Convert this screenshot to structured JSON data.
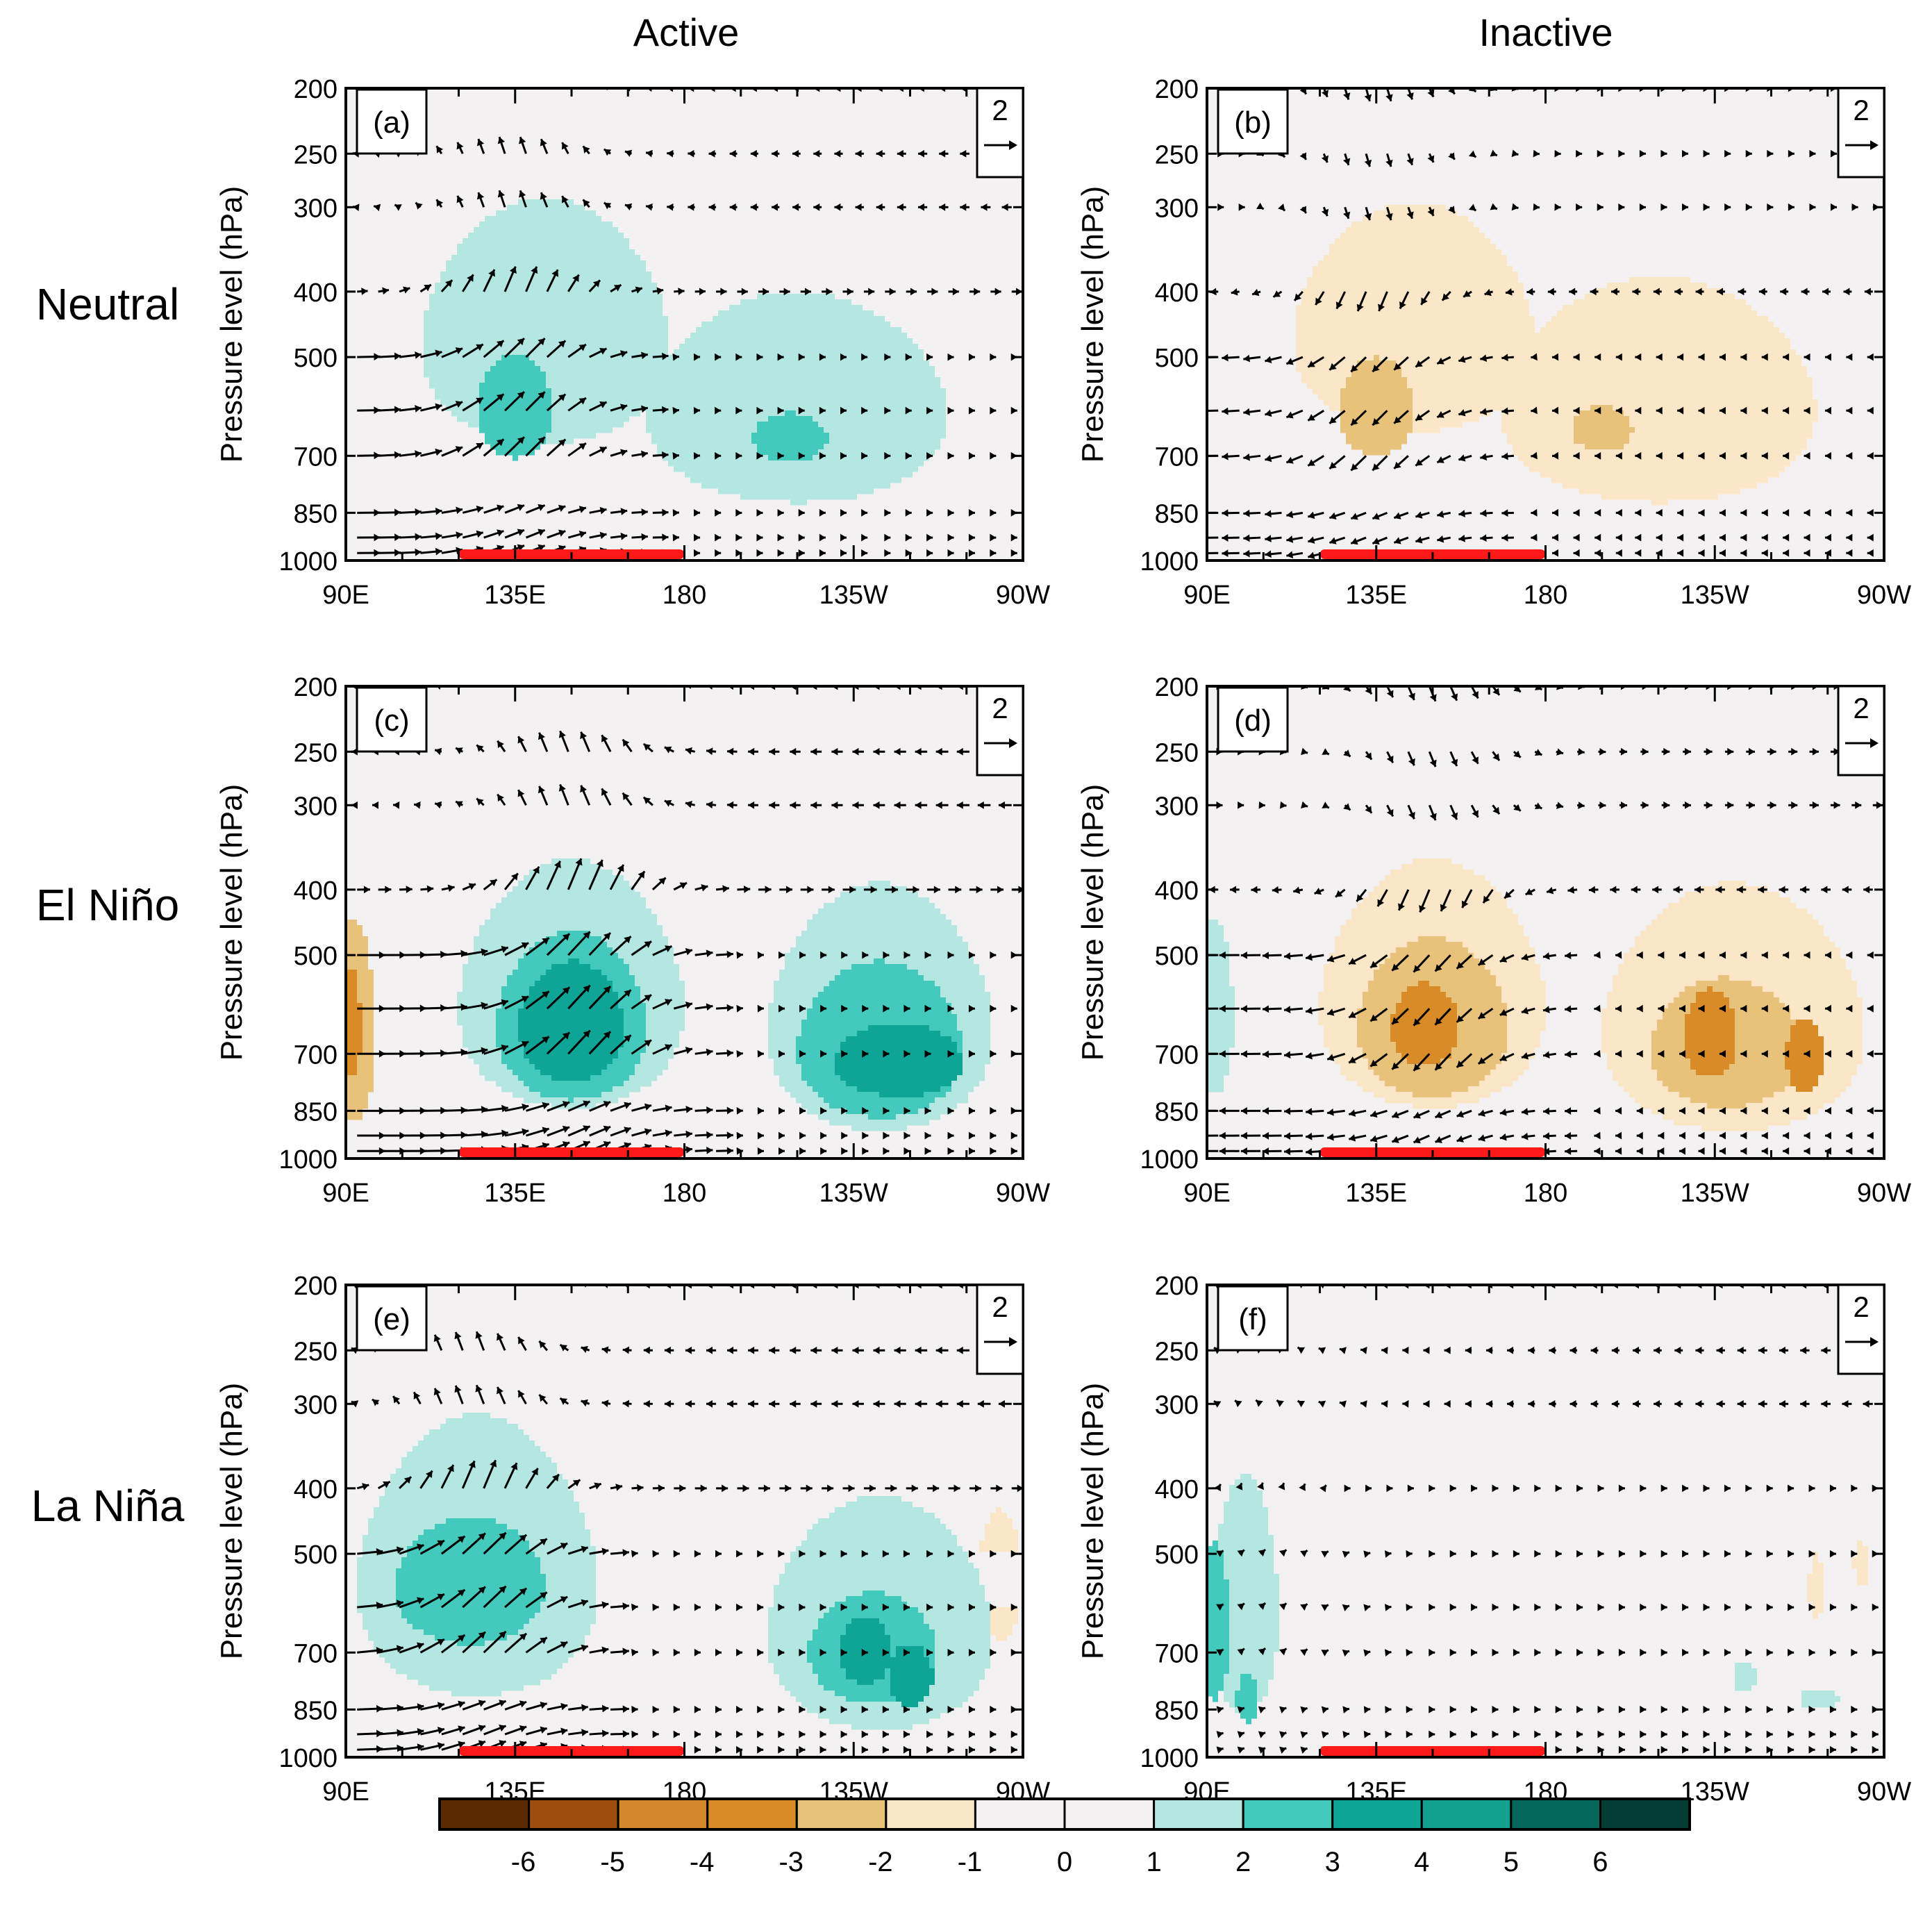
{
  "chart_data": {
    "type": "heatmap",
    "description_columns": [
      "Active",
      "Inactive"
    ],
    "column_titles": [
      "Active",
      "Inactive"
    ],
    "row_titles": [
      "Neutral",
      "El Niño",
      "La Niña"
    ],
    "ylabel": "Pressure level (hPa)",
    "y_ticks": [
      200,
      250,
      300,
      400,
      500,
      700,
      850,
      1000
    ],
    "x_ticks": [
      "90E",
      "135E",
      "180",
      "135W",
      "90W"
    ],
    "xlim_deg_east": [
      90,
      270
    ],
    "ylim_hpa": [
      1000,
      200
    ],
    "reference_vector": {
      "label": "2",
      "magnitude": 2
    },
    "highlight_bar": {
      "from_deg_east": 120,
      "to_deg_east": 180,
      "color": "#ff1a1a"
    },
    "colorbar": {
      "tick_labels": [
        "-6",
        "-5",
        "-4",
        "-3",
        "-2",
        "-1",
        "0",
        "1",
        "2",
        "3",
        "4",
        "5",
        "6"
      ],
      "bounds": [
        -6,
        -5,
        -4,
        -3,
        -2,
        -1,
        0,
        1,
        2,
        3,
        4,
        5,
        6
      ],
      "colors": [
        "#5b2a05",
        "#9c4c0c",
        "#d3862a",
        "#d98b27",
        "#e8c27a",
        "#fbe7c7",
        "#f4f1f2",
        "#f4f1f2",
        "#b5e7e2",
        "#43cabc",
        "#0ea596",
        "#12a08f",
        "#06685c",
        "#033d34"
      ]
    },
    "panels": [
      {
        "label": "(a)",
        "column": "Active",
        "row": "Neutral",
        "blobs": [
          {
            "lon": 143,
            "p": 480,
            "rlon": 33,
            "rp": 190,
            "level": 1.5
          },
          {
            "lon": 210,
            "p": 610,
            "rlon": 40,
            "rp": 210,
            "level": 1.5
          },
          {
            "lon": 135,
            "p": 600,
            "rlon": 10,
            "rp": 105,
            "level": 2.5
          },
          {
            "lon": 208,
            "p": 660,
            "rlon": 10,
            "rp": 55,
            "level": 2.5
          }
        ],
        "wind_strength": 0.9,
        "upper_west": 0.3,
        "ascent_lon": 135
      },
      {
        "label": "(b)",
        "column": "Inactive",
        "row": "Neutral",
        "blobs": [
          {
            "lon": 145,
            "p": 470,
            "rlon": 32,
            "rp": 175,
            "level": -1.5
          },
          {
            "lon": 210,
            "p": 600,
            "rlon": 42,
            "rp": 220,
            "level": -1.5
          },
          {
            "lon": 135,
            "p": 600,
            "rlon": 10,
            "rp": 100,
            "level": -2.5
          },
          {
            "lon": 195,
            "p": 640,
            "rlon": 8,
            "rp": 50,
            "level": -2.5
          }
        ],
        "wind_strength": -0.7,
        "upper_west": -0.2,
        "ascent_lon": 135
      },
      {
        "label": "(c)",
        "column": "Active",
        "row": "El Niño",
        "blobs": [
          {
            "lon": 150,
            "p": 600,
            "rlon": 30,
            "rp": 240,
            "level": 1.5
          },
          {
            "lon": 232,
            "p": 650,
            "rlon": 30,
            "rp": 260,
            "level": 1.5
          },
          {
            "lon": 150,
            "p": 640,
            "rlon": 20,
            "rp": 180,
            "level": 2.5
          },
          {
            "lon": 232,
            "p": 690,
            "rlon": 22,
            "rp": 180,
            "level": 2.5
          },
          {
            "lon": 150,
            "p": 640,
            "rlon": 14,
            "rp": 130,
            "level": 3.5
          },
          {
            "lon": 237,
            "p": 720,
            "rlon": 17,
            "rp": 90,
            "level": 3.5
          },
          {
            "lon": 92,
            "p": 660,
            "rlon": 6,
            "rp": 220,
            "level": -2.5
          },
          {
            "lon": 91,
            "p": 640,
            "rlon": 3,
            "rp": 120,
            "level": -3.5
          }
        ],
        "wind_strength": 1.1,
        "upper_west": 0.4,
        "ascent_lon": 150
      },
      {
        "label": "(d)",
        "column": "Inactive",
        "row": "El Niño",
        "blobs": [
          {
            "lon": 150,
            "p": 600,
            "rlon": 30,
            "rp": 240,
            "level": -1.5
          },
          {
            "lon": 230,
            "p": 650,
            "rlon": 35,
            "rp": 260,
            "level": -1.5
          },
          {
            "lon": 150,
            "p": 640,
            "rlon": 20,
            "rp": 170,
            "level": -2.5
          },
          {
            "lon": 228,
            "p": 690,
            "rlon": 20,
            "rp": 150,
            "level": -2.5
          },
          {
            "lon": 148,
            "p": 640,
            "rlon": 9,
            "rp": 90,
            "level": -3.5
          },
          {
            "lon": 224,
            "p": 660,
            "rlon": 7,
            "rp": 100,
            "level": -3.5
          },
          {
            "lon": 249,
            "p": 710,
            "rlon": 5,
            "rp": 90,
            "level": -3.5
          },
          {
            "lon": 92,
            "p": 620,
            "rlon": 5,
            "rp": 180,
            "level": 1.5
          }
        ],
        "wind_strength": -0.8,
        "upper_west": -0.3,
        "ascent_lon": 150
      },
      {
        "label": "(e)",
        "column": "Active",
        "row": "La Niña",
        "blobs": [
          {
            "lon": 125,
            "p": 560,
            "rlon": 32,
            "rp": 250,
            "level": 1.5
          },
          {
            "lon": 232,
            "p": 660,
            "rlon": 30,
            "rp": 250,
            "level": 1.5
          },
          {
            "lon": 123,
            "p": 560,
            "rlon": 20,
            "rp": 120,
            "level": 2.5
          },
          {
            "lon": 230,
            "p": 700,
            "rlon": 17,
            "rp": 130,
            "level": 2.5
          },
          {
            "lon": 228,
            "p": 700,
            "rlon": 7,
            "rp": 80,
            "level": 3.5
          },
          {
            "lon": 240,
            "p": 760,
            "rlon": 6,
            "rp": 80,
            "level": 3.5
          },
          {
            "lon": 264,
            "p": 550,
            "rlon": 6,
            "rp": 120,
            "level": -1.5
          }
        ],
        "wind_strength": 1.0,
        "upper_west": 0.4,
        "ascent_lon": 125
      },
      {
        "label": "(f)",
        "column": "Inactive",
        "row": "La Niña",
        "blobs": [
          {
            "lon": 100,
            "p": 620,
            "rlon": 9,
            "rp": 240,
            "level": 1.5
          },
          {
            "lon": 92,
            "p": 650,
            "rlon": 4,
            "rp": 170,
            "level": 2.5
          },
          {
            "lon": 101,
            "p": 820,
            "rlon": 3,
            "rp": 70,
            "level": 2.5
          },
          {
            "lon": 233,
            "p": 760,
            "rlon": 3,
            "rp": 40,
            "level": 1.5
          },
          {
            "lon": 253,
            "p": 820,
            "rlon": 5,
            "rp": 30,
            "level": 1.5
          },
          {
            "lon": 252,
            "p": 560,
            "rlon": 2,
            "rp": 60,
            "level": -1.5
          },
          {
            "lon": 264,
            "p": 520,
            "rlon": 2,
            "rp": 40,
            "level": -1.5
          }
        ],
        "wind_strength": 0.2,
        "upper_west": 0.3,
        "ascent_lon": 105
      }
    ]
  }
}
